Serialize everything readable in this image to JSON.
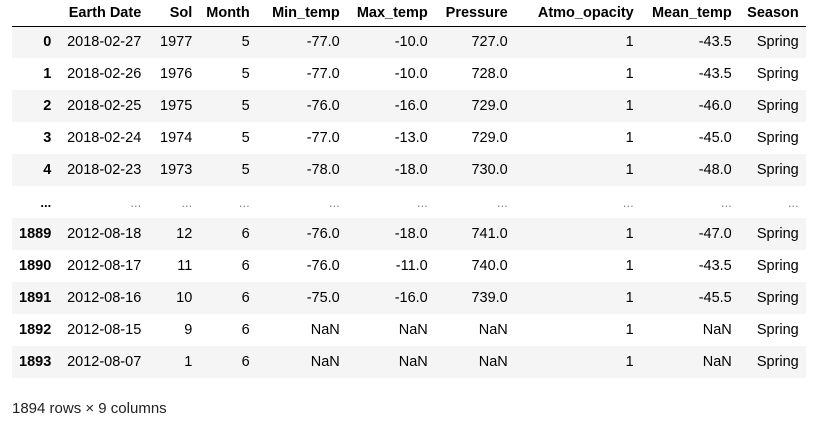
{
  "table": {
    "columns": [
      "",
      "Earth Date",
      "Sol",
      "Month",
      "Min_temp",
      "Max_temp",
      "Pressure",
      "Atmo_opacity",
      "Mean_temp",
      "Season"
    ],
    "rows": [
      {
        "index": "0",
        "cells": [
          "2018-02-27",
          "1977",
          "5",
          "-77.0",
          "-10.0",
          "727.0",
          "1",
          "-43.5",
          "Spring"
        ]
      },
      {
        "index": "1",
        "cells": [
          "2018-02-26",
          "1976",
          "5",
          "-77.0",
          "-10.0",
          "728.0",
          "1",
          "-43.5",
          "Spring"
        ]
      },
      {
        "index": "2",
        "cells": [
          "2018-02-25",
          "1975",
          "5",
          "-76.0",
          "-16.0",
          "729.0",
          "1",
          "-46.0",
          "Spring"
        ]
      },
      {
        "index": "3",
        "cells": [
          "2018-02-24",
          "1974",
          "5",
          "-77.0",
          "-13.0",
          "729.0",
          "1",
          "-45.0",
          "Spring"
        ]
      },
      {
        "index": "4",
        "cells": [
          "2018-02-23",
          "1973",
          "5",
          "-78.0",
          "-18.0",
          "730.0",
          "1",
          "-48.0",
          "Spring"
        ]
      },
      {
        "index": "...",
        "cells": [
          "...",
          "...",
          "...",
          "...",
          "...",
          "...",
          "...",
          "...",
          "..."
        ]
      },
      {
        "index": "1889",
        "cells": [
          "2012-08-18",
          "12",
          "6",
          "-76.0",
          "-18.0",
          "741.0",
          "1",
          "-47.0",
          "Spring"
        ]
      },
      {
        "index": "1890",
        "cells": [
          "2012-08-17",
          "11",
          "6",
          "-76.0",
          "-11.0",
          "740.0",
          "1",
          "-43.5",
          "Spring"
        ]
      },
      {
        "index": "1891",
        "cells": [
          "2012-08-16",
          "10",
          "6",
          "-75.0",
          "-16.0",
          "739.0",
          "1",
          "-45.5",
          "Spring"
        ]
      },
      {
        "index": "1892",
        "cells": [
          "2012-08-15",
          "9",
          "6",
          "NaN",
          "NaN",
          "NaN",
          "1",
          "NaN",
          "Spring"
        ]
      },
      {
        "index": "1893",
        "cells": [
          "2012-08-07",
          "1",
          "6",
          "NaN",
          "NaN",
          "NaN",
          "1",
          "NaN",
          "Spring"
        ]
      }
    ]
  },
  "footer": {
    "shape_text": "1894 rows × 9 columns"
  }
}
